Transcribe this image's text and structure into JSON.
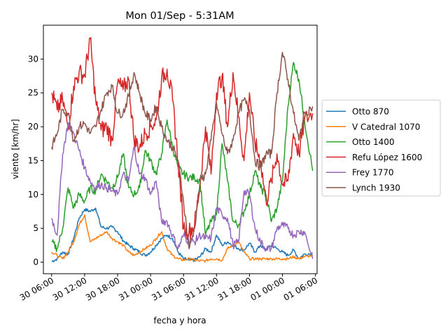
{
  "chart_data": {
    "type": "line",
    "title": "Mon 01/Sep - 5:31AM",
    "xlabel": "fecha y hora",
    "ylabel": "viento [km/hr]",
    "x_unit": "hours since 30 06:00",
    "xlim": [
      -1.5,
      48.3
    ],
    "ylim": [
      -1.7,
      35
    ],
    "xticks": [
      {
        "x": 0,
        "label": "30 06:00"
      },
      {
        "x": 6,
        "label": "30 12:00"
      },
      {
        "x": 12,
        "label": "30 18:00"
      },
      {
        "x": 18,
        "label": "31 00:00"
      },
      {
        "x": 24,
        "label": "31 06:00"
      },
      {
        "x": 30,
        "label": "31 12:00"
      },
      {
        "x": 36,
        "label": "31 18:00"
      },
      {
        "x": 42,
        "label": "01 00:00"
      },
      {
        "x": 48,
        "label": "01 06:00"
      }
    ],
    "yticks": [
      0,
      5,
      10,
      15,
      20,
      25,
      30
    ],
    "legend_position": "right",
    "series": [
      {
        "name": "Otto 870",
        "color": "#1f77b4",
        "x": [
          0,
          1,
          2,
          3,
          4,
          5,
          6,
          7,
          8,
          9,
          10,
          11,
          12,
          13,
          14,
          15,
          16,
          17,
          18,
          19,
          20,
          21,
          22,
          23,
          24,
          25,
          26,
          27,
          28,
          29,
          30,
          31,
          32,
          33,
          34,
          35,
          36,
          37,
          38,
          39,
          40,
          41,
          42,
          43,
          44,
          45,
          46,
          47.5
        ],
        "y": [
          0.1,
          0.5,
          1.5,
          1.2,
          3.5,
          6.5,
          7.8,
          7.5,
          8.0,
          5.2,
          5.0,
          5.2,
          4.5,
          3.2,
          2.5,
          2.0,
          1.5,
          1.0,
          1.5,
          2.5,
          3.5,
          4.0,
          3.5,
          1.5,
          0.5,
          0.3,
          0.3,
          0.8,
          2.0,
          1.5,
          4.0,
          2.5,
          3.0,
          2.5,
          2.0,
          1.8,
          2.8,
          1.5,
          2.5,
          1.8,
          2.5,
          2.0,
          1.5,
          1.0,
          1.8,
          0.5,
          1.2,
          1.3
        ]
      },
      {
        "name": "V Catedral 1070",
        "color": "#ff7f0e",
        "x": [
          0,
          1,
          2,
          3,
          4,
          5,
          6,
          7,
          8,
          9,
          10,
          11,
          12,
          13,
          14,
          15,
          16,
          17,
          18,
          19,
          20,
          21,
          22,
          23,
          24,
          25,
          26,
          27,
          28,
          29,
          30,
          31,
          32,
          33,
          34,
          35,
          36,
          37,
          38,
          39,
          40,
          41,
          42,
          43,
          44,
          45,
          46,
          47.5
        ],
        "y": [
          1.5,
          1.0,
          0.5,
          1.5,
          3.0,
          5.5,
          7.0,
          3.0,
          3.5,
          4.0,
          4.5,
          3.5,
          3.0,
          2.5,
          1.5,
          1.0,
          1.5,
          2.0,
          2.5,
          3.5,
          4.5,
          2.0,
          1.0,
          0.5,
          0.3,
          0.5,
          0.3,
          0.2,
          0.2,
          0.5,
          0.5,
          0.3,
          2.0,
          2.5,
          3.0,
          1.5,
          0.5,
          0.5,
          0.5,
          0.5,
          0.5,
          0.5,
          0.5,
          0.5,
          0.8,
          0.5,
          0.8,
          1.0
        ]
      },
      {
        "name": "Otto 1400",
        "color": "#2ca02c",
        "x": [
          0,
          1,
          2,
          3,
          4,
          5,
          6,
          7,
          8,
          9,
          10,
          11,
          12,
          13,
          14,
          15,
          16,
          17,
          18,
          19,
          20,
          21,
          22,
          23,
          24,
          25,
          26,
          27,
          28,
          29,
          30,
          31,
          32,
          33,
          34,
          35,
          36,
          37,
          38,
          39,
          40,
          41,
          42,
          43,
          44,
          45,
          46,
          47.5
        ],
        "y": [
          3.0,
          2.0,
          5.0,
          11.0,
          8.0,
          10.0,
          9.0,
          11.0,
          10.5,
          13.0,
          12.0,
          11.0,
          12.5,
          16.0,
          11.0,
          10.0,
          11.0,
          16.5,
          15.0,
          13.0,
          16.0,
          21.0,
          17.0,
          14.0,
          13.0,
          12.5,
          12.5,
          12.0,
          4.0,
          6.0,
          7.0,
          17.5,
          12.0,
          6.0,
          5.5,
          7.5,
          10.0,
          13.5,
          11.0,
          10.0,
          6.0,
          8.0,
          12.0,
          23.0,
          29.5,
          27.0,
          21.0,
          13.5
        ]
      },
      {
        "name": "Refu López 1600",
        "color": "#d62728",
        "x": [
          0,
          1,
          2,
          3,
          4,
          5,
          6,
          7,
          8,
          9,
          10,
          11,
          12,
          13,
          14,
          15,
          16,
          17,
          18,
          19,
          20,
          21,
          22,
          23,
          24,
          25,
          26,
          27,
          28,
          29,
          30,
          31,
          32,
          33,
          34,
          35,
          36,
          37,
          38,
          39,
          40,
          41,
          42,
          43,
          44,
          45,
          46,
          47.5
        ],
        "y": [
          25.0,
          22.5,
          24.0,
          20.0,
          26.0,
          28.0,
          27.5,
          33.0,
          24.0,
          19.5,
          20.0,
          18.0,
          26.5,
          25.5,
          27.0,
          18.0,
          17.0,
          19.0,
          20.0,
          21.0,
          27.0,
          28.5,
          24.0,
          15.0,
          5.0,
          4.5,
          5.5,
          11.5,
          20.0,
          13.0,
          25.0,
          27.5,
          20.0,
          28.0,
          21.5,
          15.0,
          25.0,
          17.5,
          15.0,
          9.0,
          12.0,
          16.0,
          11.5,
          12.0,
          19.0,
          16.0,
          21.0,
          22.0
        ]
      },
      {
        "name": "Frey 1770",
        "color": "#9467bd",
        "x": [
          0,
          1,
          2,
          3,
          4,
          5,
          6,
          7,
          8,
          9,
          10,
          11,
          12,
          13,
          14,
          15,
          16,
          17,
          18,
          19,
          20,
          21,
          22,
          23,
          24,
          25,
          26,
          27,
          28,
          29,
          30,
          31,
          32,
          33,
          34,
          35,
          36,
          37,
          38,
          39,
          40,
          41,
          42,
          43,
          44,
          45,
          46,
          47.5
        ],
        "y": [
          6.5,
          4.0,
          16.0,
          20.5,
          19.0,
          16.5,
          14.0,
          12.0,
          11.0,
          11.5,
          11.0,
          10.5,
          10.0,
          13.0,
          12.0,
          17.0,
          13.0,
          12.5,
          10.0,
          12.0,
          6.0,
          6.0,
          4.0,
          2.0,
          4.0,
          3.0,
          3.0,
          4.0,
          3.5,
          3.5,
          8.0,
          7.0,
          6.5,
          2.5,
          3.0,
          10.5,
          10.0,
          5.0,
          3.0,
          2.0,
          2.0,
          5.0,
          5.5,
          5.0,
          4.0,
          4.5,
          4.5,
          0.5
        ]
      },
      {
        "name": "Lynch 1930",
        "color": "#8c564b",
        "x": [
          0,
          1,
          2,
          3,
          4,
          5,
          6,
          7,
          8,
          9,
          10,
          11,
          12,
          13,
          14,
          15,
          16,
          17,
          18,
          19,
          20,
          21,
          22,
          23,
          24,
          25,
          26,
          27,
          28,
          29,
          30,
          31,
          32,
          33,
          34,
          35,
          36,
          37,
          38,
          39,
          40,
          41,
          42,
          43,
          44,
          45,
          46,
          47.5
        ],
        "y": [
          17.0,
          19.0,
          22.5,
          22.0,
          18.0,
          20.0,
          20.5,
          19.0,
          20.0,
          22.5,
          25.0,
          26.0,
          22.0,
          22.0,
          24.5,
          28.0,
          25.0,
          22.0,
          21.0,
          23.0,
          20.0,
          18.0,
          17.0,
          15.0,
          9.0,
          2.0,
          5.0,
          12.0,
          13.0,
          18.0,
          23.5,
          19.0,
          16.0,
          18.0,
          22.0,
          24.0,
          22.5,
          15.0,
          14.0,
          16.0,
          16.0,
          25.0,
          31.0,
          27.0,
          22.0,
          18.0,
          22.0,
          23.0
        ]
      }
    ]
  }
}
